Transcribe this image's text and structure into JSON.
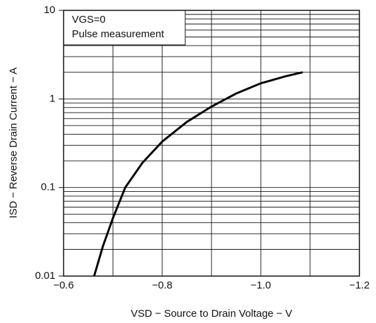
{
  "chart_data": {
    "type": "line",
    "xlabel": "VSD − Source to Drain Voltage − V",
    "ylabel": "ISD − Reverse Drain Current − A",
    "annotations": [
      "VGS=0",
      "Pulse measurement"
    ],
    "xlim": [
      -0.6,
      -1.2
    ],
    "xticks": [
      {
        "value": -0.6,
        "label": "−0.6"
      },
      {
        "value": -0.8,
        "label": "−0.8"
      },
      {
        "value": -1.0,
        "label": "−1.0"
      },
      {
        "value": -1.2,
        "label": "−1.2"
      }
    ],
    "ylim": [
      0.01,
      10
    ],
    "yscale": "log",
    "yticks": [
      0.01,
      0.1,
      1,
      10
    ],
    "grid": true,
    "series": [
      {
        "name": "ISD",
        "color": "#000000",
        "x": [
          -0.662,
          -0.68,
          -0.7,
          -0.725,
          -0.76,
          -0.8,
          -0.85,
          -0.9,
          -0.95,
          -1.0,
          -1.05,
          -1.085
        ],
        "values": [
          0.01,
          0.022,
          0.045,
          0.1,
          0.19,
          0.33,
          0.55,
          0.82,
          1.15,
          1.5,
          1.8,
          2.0
        ]
      }
    ]
  }
}
